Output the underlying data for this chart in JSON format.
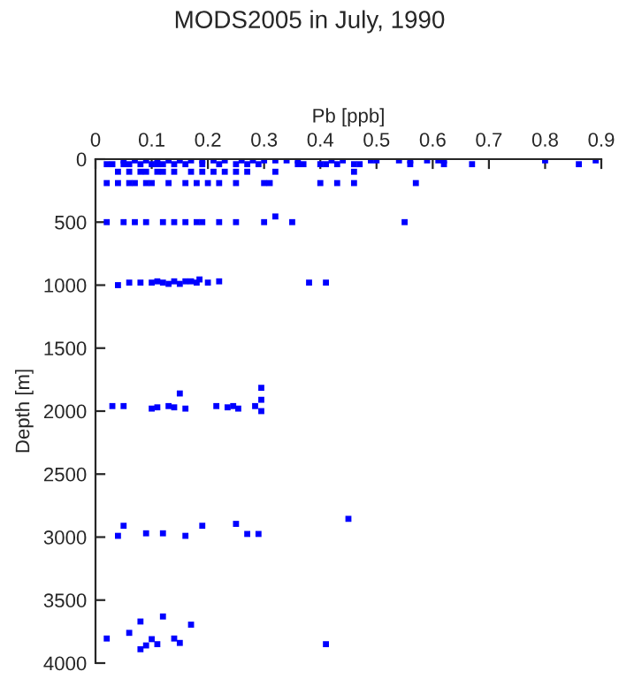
{
  "chart_data": {
    "type": "scatter",
    "title": "MODS2005 in July, 1990",
    "xlabel": "Pb [ppb]",
    "ylabel": "Depth [m]",
    "series": [
      {
        "color": "#0000ff",
        "x": [
          0.05,
          0.07,
          0.09,
          0.11,
          0.13,
          0.15,
          0.17,
          0.19,
          0.21,
          0.23,
          0.26,
          0.28,
          0.3,
          0.32,
          0.34,
          0.36,
          0.42,
          0.44,
          0.49,
          0.5,
          0.54,
          0.56,
          0.59,
          0.61,
          0.62,
          0.8,
          0.89,
          0.02,
          0.03,
          0.05,
          0.06,
          0.08,
          0.1,
          0.11,
          0.12,
          0.14,
          0.16,
          0.19,
          0.22,
          0.25,
          0.27,
          0.29,
          0.36,
          0.37,
          0.4,
          0.41,
          0.43,
          0.46,
          0.47,
          0.56,
          0.62,
          0.67,
          0.86,
          0.04,
          0.06,
          0.08,
          0.09,
          0.11,
          0.12,
          0.14,
          0.17,
          0.19,
          0.21,
          0.23,
          0.25,
          0.27,
          0.32,
          0.46,
          0.02,
          0.04,
          0.06,
          0.07,
          0.09,
          0.1,
          0.13,
          0.16,
          0.18,
          0.2,
          0.22,
          0.25,
          0.3,
          0.31,
          0.4,
          0.43,
          0.46,
          0.57,
          0.02,
          0.05,
          0.07,
          0.09,
          0.12,
          0.14,
          0.16,
          0.18,
          0.19,
          0.22,
          0.25,
          0.3,
          0.32,
          0.35,
          0.55,
          0.04,
          0.06,
          0.08,
          0.1,
          0.11,
          0.12,
          0.13,
          0.14,
          0.15,
          0.16,
          0.17,
          0.18,
          0.185,
          0.2,
          0.22,
          0.38,
          0.41,
          0.03,
          0.05,
          0.1,
          0.11,
          0.13,
          0.14,
          0.15,
          0.16,
          0.215,
          0.235,
          0.245,
          0.254,
          0.284,
          0.295,
          0.295,
          0.295,
          0.04,
          0.05,
          0.09,
          0.12,
          0.16,
          0.19,
          0.25,
          0.27,
          0.29,
          0.45,
          0.02,
          0.06,
          0.08,
          0.08,
          0.09,
          0.1,
          0.11,
          0.12,
          0.14,
          0.15,
          0.17,
          0.41
        ],
        "values": [
          10,
          10,
          10,
          10,
          10,
          10,
          10,
          10,
          10,
          10,
          10,
          10,
          10,
          10,
          10,
          10,
          10,
          10,
          10,
          10,
          10,
          10,
          10,
          10,
          10,
          10,
          10,
          40,
          40,
          40,
          40,
          40,
          40,
          40,
          40,
          40,
          40,
          40,
          40,
          40,
          40,
          40,
          40,
          40,
          40,
          40,
          40,
          40,
          40,
          40,
          40,
          40,
          40,
          100,
          100,
          100,
          100,
          100,
          100,
          100,
          100,
          100,
          100,
          100,
          100,
          100,
          100,
          100,
          190,
          190,
          190,
          190,
          190,
          190,
          190,
          190,
          190,
          190,
          190,
          190,
          190,
          190,
          190,
          190,
          190,
          190,
          500,
          500,
          500,
          500,
          500,
          500,
          500,
          500,
          500,
          500,
          500,
          500,
          455,
          500,
          500,
          1000,
          980,
          980,
          980,
          970,
          980,
          990,
          970,
          990,
          970,
          970,
          980,
          955,
          980,
          970,
          980,
          980,
          1960,
          1960,
          1980,
          1970,
          1960,
          1970,
          1860,
          1980,
          1960,
          1970,
          1960,
          1980,
          1960,
          1815,
          1910,
          2000,
          2990,
          2910,
          2970,
          2970,
          2990,
          2910,
          2895,
          2975,
          2975,
          2855,
          3805,
          3760,
          3670,
          3890,
          3860,
          3810,
          3850,
          3630,
          3805,
          3840,
          3695,
          3850
        ]
      }
    ],
    "xlim": [
      0,
      0.9
    ],
    "xticks": [
      0,
      0.1,
      0.2,
      0.3,
      0.4,
      0.5,
      0.6,
      0.7,
      0.8,
      0.9
    ],
    "ylim": [
      4000,
      0
    ],
    "yticks": [
      0,
      500,
      1000,
      1500,
      2000,
      2500,
      3000,
      3500,
      4000
    ],
    "marker": "square",
    "grid": false,
    "legend": false
  }
}
